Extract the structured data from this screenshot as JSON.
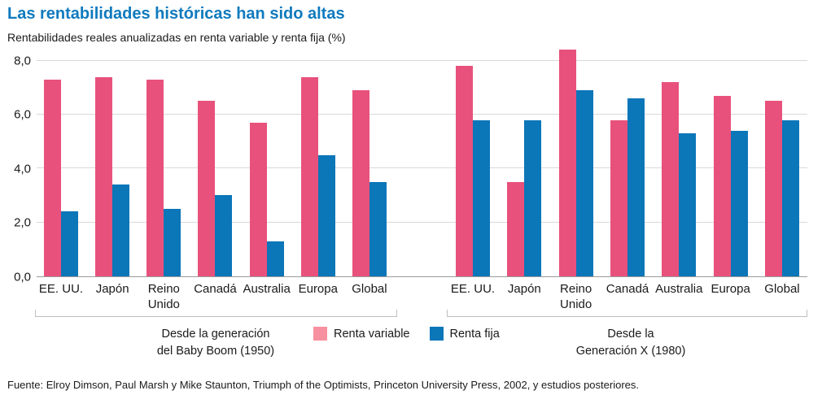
{
  "header": {
    "title": "Las rentabilidades históricas han sido altas",
    "subtitle": "Rentabilidades reales anualizadas en renta variable y renta fija (%)"
  },
  "chart_data": {
    "type": "bar",
    "ylim": [
      0,
      8.5
    ],
    "yticks": [
      {
        "value": 0,
        "label": "0,0"
      },
      {
        "value": 2,
        "label": "2,0"
      },
      {
        "value": 4,
        "label": "4,0"
      },
      {
        "value": 6,
        "label": "6,0"
      },
      {
        "value": 8,
        "label": "8,0"
      }
    ],
    "gridlines": [
      2,
      4,
      6,
      8
    ],
    "grid": "on",
    "series_names": [
      "Renta variable",
      "Renta fija"
    ],
    "groups": [
      {
        "caption": "Desde la generación\ndel Baby Boom (1950)",
        "categories": [
          "EE. UU.",
          "Japón",
          "Reino\nUnido",
          "Canadá",
          "Australia",
          "Europa",
          "Global"
        ],
        "series": [
          {
            "name": "Renta variable",
            "values": [
              7.3,
              7.4,
              7.3,
              6.5,
              5.7,
              7.4,
              6.9
            ]
          },
          {
            "name": "Renta fija",
            "values": [
              2.4,
              3.4,
              2.5,
              3.0,
              1.3,
              4.5,
              3.5
            ]
          }
        ]
      },
      {
        "caption": "Desde la\nGeneración X (1980)",
        "categories": [
          "EE. UU.",
          "Japón",
          "Reino\nUnido",
          "Canadá",
          "Australia",
          "Europa",
          "Global"
        ],
        "series": [
          {
            "name": "Renta variable",
            "values": [
              7.8,
              3.5,
              8.4,
              5.8,
              7.2,
              6.7,
              6.5
            ]
          },
          {
            "name": "Renta fija",
            "values": [
              5.8,
              5.8,
              6.9,
              6.6,
              5.3,
              5.4,
              5.8
            ]
          }
        ]
      }
    ],
    "legend": {
      "position": "bottom-center",
      "items": [
        {
          "label": "Renta variable",
          "color": "#f8919f"
        },
        {
          "label": "Renta fija",
          "color": "#0b76b8"
        }
      ]
    }
  },
  "colors": {
    "title": "#0f7abe",
    "equities_bar": "#e8517c",
    "bonds_bar": "#0b76b8",
    "equities_legend_swatch": "#f8919f",
    "bonds_legend_swatch": "#0b76b8",
    "gridline": "#d9d9d9",
    "baseline": "#9b9b9b",
    "bracket": "#bfbfbf",
    "text": "#1a1a1a"
  },
  "footer": {
    "source": "Fuente: Elroy Dimson, Paul Marsh y Mike Staunton, Triumph of the Optimists, Princeton University Press, 2002, y estudios posteriores."
  }
}
